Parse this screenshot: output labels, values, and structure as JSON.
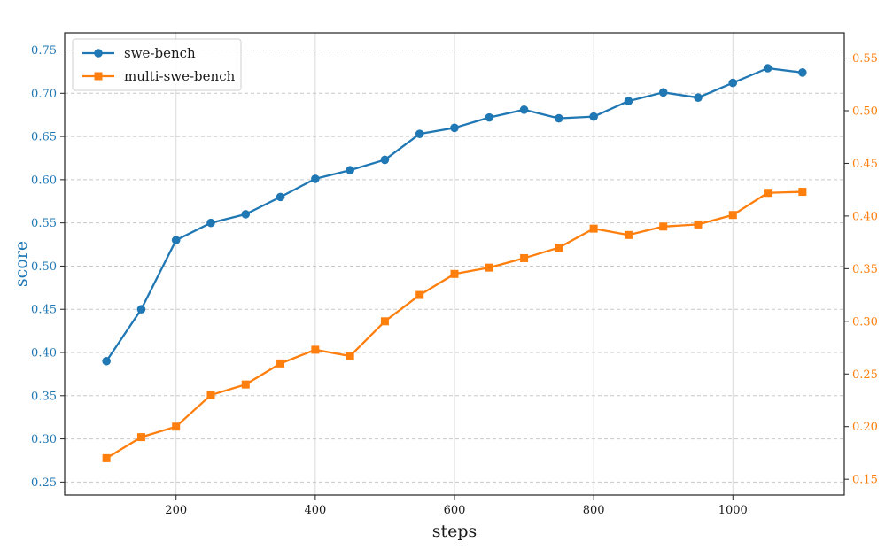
{
  "chart_data": {
    "type": "line",
    "xlabel": "steps",
    "ylabel": "score",
    "ylabel_right": "",
    "x_ticks": [
      200,
      400,
      600,
      800,
      1000
    ],
    "xlim": [
      40,
      1160
    ],
    "y_left_lim": [
      0.235,
      0.77
    ],
    "y_left_ticks": [
      0.25,
      0.3,
      0.35,
      0.4,
      0.45,
      0.5,
      0.55,
      0.6,
      0.65,
      0.7,
      0.75
    ],
    "y_left_tick_labels": [
      "0.25",
      "0.30",
      "0.35",
      "0.40",
      "0.45",
      "0.50",
      "0.55",
      "0.60",
      "0.65",
      "0.70",
      "0.75"
    ],
    "y_right_lim": [
      0.135,
      0.574
    ],
    "y_right_ticks": [
      0.15,
      0.2,
      0.25,
      0.3,
      0.35,
      0.4,
      0.45,
      0.5,
      0.55
    ],
    "y_right_tick_labels": [
      "0.15",
      "0.20",
      "0.25",
      "0.30",
      "0.35",
      "0.40",
      "0.45",
      "0.50",
      "0.55"
    ],
    "grid": true,
    "legend_position": "top-left",
    "x": [
      100,
      150,
      200,
      250,
      300,
      350,
      400,
      450,
      500,
      550,
      600,
      650,
      700,
      750,
      800,
      850,
      900,
      950,
      1000,
      1050,
      1100
    ],
    "series": [
      {
        "name": "swe-bench",
        "axis": "left",
        "color": "#1f77b4",
        "marker": "circle",
        "values": [
          0.39,
          0.45,
          0.53,
          0.55,
          0.56,
          0.58,
          0.601,
          0.611,
          0.623,
          0.653,
          0.66,
          0.672,
          0.681,
          0.671,
          0.673,
          0.691,
          0.701,
          0.695,
          0.712,
          0.729,
          0.724
        ]
      },
      {
        "name": "multi-swe-bench",
        "axis": "right",
        "color": "#ff7f0e",
        "marker": "square",
        "values": [
          0.17,
          0.19,
          0.2,
          0.23,
          0.24,
          0.26,
          0.273,
          0.267,
          0.3,
          0.325,
          0.345,
          0.351,
          0.36,
          0.37,
          0.388,
          0.382,
          0.39,
          0.392,
          0.401,
          0.422,
          0.423
        ]
      }
    ]
  }
}
